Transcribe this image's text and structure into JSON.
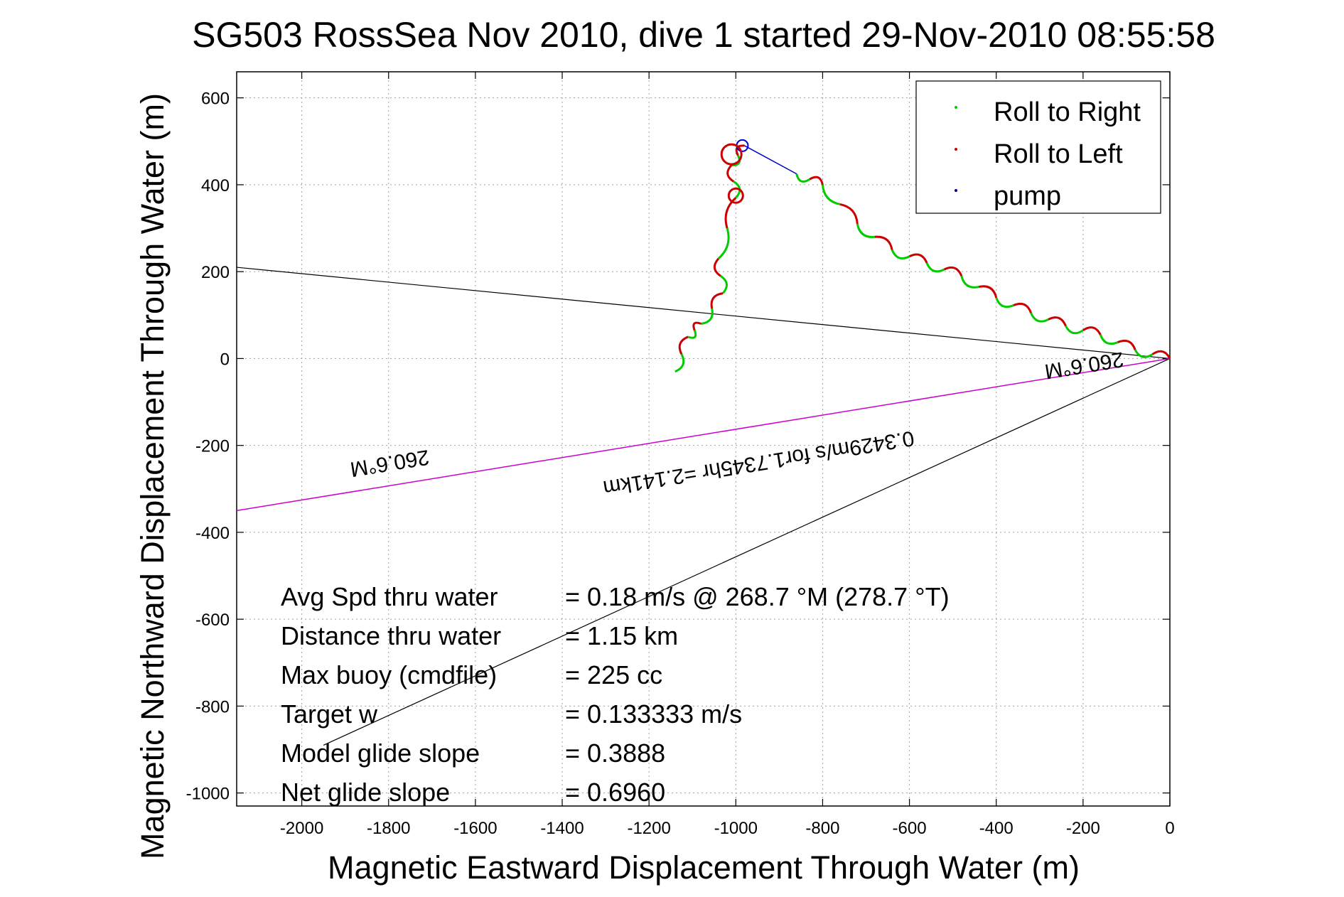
{
  "chart_data": {
    "type": "line",
    "title": "SG503 RossSea Nov 2010, dive 1 started 29-Nov-2010 08:55:58",
    "xlabel": "Magnetic Eastward Displacement Through Water (m)",
    "ylabel": "Magnetic Northward Displacement Through Water (m)",
    "xlim": [
      -2150,
      0
    ],
    "ylim": [
      -1030,
      660
    ],
    "xticks": [
      -2000,
      -1800,
      -1600,
      -1400,
      -1200,
      -1000,
      -800,
      -600,
      -400,
      -200,
      0
    ],
    "xtick_labels": [
      "-2000",
      "-1800",
      "-1600",
      "-1400",
      "-1200",
      "-1000",
      "-800",
      "-600",
      "-400",
      "-200",
      "0"
    ],
    "yticks": [
      600,
      400,
      200,
      0,
      -200,
      -400,
      -600,
      -800,
      -1000
    ],
    "ytick_labels": [
      "600",
      "400",
      "200",
      "0",
      "-200",
      "-400",
      "-600",
      "-800",
      "-1000"
    ],
    "grid": true,
    "legend": {
      "placement": "top-right",
      "entries": [
        {
          "label": "Roll to Right",
          "color": "#00cc00"
        },
        {
          "label": "Roll to Left",
          "color": "#cc0000"
        },
        {
          "label": "pump",
          "color": "#000080"
        }
      ]
    },
    "track_path": [
      [
        0,
        0
      ],
      [
        -80,
        20
      ],
      [
        -160,
        55
      ],
      [
        -240,
        75
      ],
      [
        -320,
        105
      ],
      [
        -400,
        140
      ],
      [
        -480,
        190
      ],
      [
        -560,
        220
      ],
      [
        -640,
        250
      ],
      [
        -720,
        310
      ],
      [
        -800,
        400
      ],
      [
        -860,
        425
      ],
      [
        -980,
        490
      ],
      [
        -1010,
        445
      ],
      [
        -1000,
        370
      ],
      [
        -1040,
        230
      ],
      [
        -1030,
        150
      ],
      [
        -1080,
        80
      ],
      [
        -1110,
        50
      ],
      [
        -1140,
        -30
      ]
    ],
    "pump_segment": [
      [
        -860,
        425
      ],
      [
        -980,
        490
      ]
    ],
    "black_lines": [
      {
        "from": [
          0,
          0
        ],
        "to": [
          -2150,
          210
        ]
      },
      {
        "from": [
          0,
          0
        ],
        "to": [
          -1950,
          -890
        ]
      }
    ],
    "magenta_line": {
      "from": [
        0,
        0
      ],
      "to": [
        -2150,
        -350
      ]
    },
    "line_labels": [
      {
        "text": "260.6°M",
        "at": [
          -200,
          0
        ],
        "rotated": true
      },
      {
        "text": "0.3429m/s for1.7345hr =2.141km",
        "at": [
          -950,
          -225
        ],
        "rotated": true
      },
      {
        "text": "260.6°M",
        "at": [
          -1800,
          -225
        ],
        "rotated": true
      }
    ],
    "stats": [
      {
        "label": "Avg Spd thru water",
        "value": "=  0.18 m/s @ 268.7 °M (278.7 °T)"
      },
      {
        "label": "Distance thru water",
        "value": "=  1.15 km"
      },
      {
        "label": "Max buoy (cmdfile)",
        "value": "= 225 cc"
      },
      {
        "label": "Target w",
        "value": "= 0.133333 m/s"
      },
      {
        "label": "Model glide slope",
        "value": "= 0.3888"
      },
      {
        "label": "Net glide slope",
        "value": "= 0.6960"
      }
    ],
    "colors": {
      "track": "#cc0000",
      "track_alt": "#00cc00",
      "pump": "#0000cc",
      "black": "#000000",
      "magenta": "#cc00cc",
      "grid": "#a0a0a0"
    }
  }
}
